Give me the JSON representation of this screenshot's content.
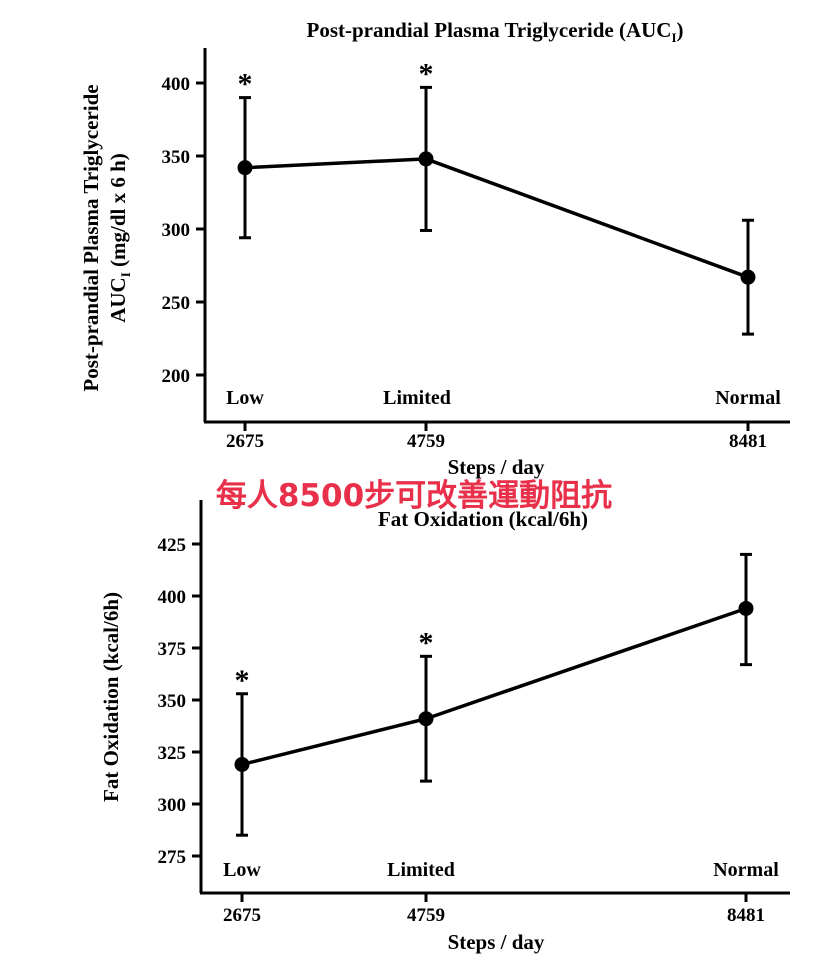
{
  "overlay_caption": "每人8500步可改善運動阻抗",
  "chart_data": [
    {
      "type": "line",
      "title": "Post-prandial Plasma Triglyceride (AUC",
      "title_subscript": "I",
      "title_close": ")",
      "ylabel_line1": "Post-prandial Plasma Triglyceride",
      "ylabel_line2_prefix": "AUC",
      "ylabel_line2_subscript": "I",
      "ylabel_line2_suffix": " (mg/dl x 6 h)",
      "xlabel": "Steps / day",
      "x": [
        2675,
        4759,
        8481
      ],
      "x_tick_labels": [
        "2675",
        "4759",
        "8481"
      ],
      "category_labels": [
        "Low",
        "Limited",
        "Normal"
      ],
      "ylim": [
        190,
        425
      ],
      "yticks": [
        200,
        250,
        300,
        350,
        400
      ],
      "series": [
        {
          "values": [
            342,
            348,
            267
          ],
          "error_low": [
            294,
            299,
            228
          ],
          "error_high": [
            390,
            397,
            306
          ],
          "significance": [
            "*",
            "*",
            ""
          ]
        }
      ]
    },
    {
      "type": "line",
      "title": "Fat Oxidation (kcal/6h)",
      "ylabel": "Fat Oxidation (kcal/6h)",
      "xlabel": "Steps / day",
      "x": [
        2675,
        4759,
        8481
      ],
      "x_tick_labels": [
        "2675",
        "4759",
        "8481"
      ],
      "category_labels": [
        "Low",
        "Limited",
        "Normal"
      ],
      "ylim": [
        260,
        435
      ],
      "yticks": [
        275,
        300,
        325,
        350,
        375,
        400,
        425
      ],
      "series": [
        {
          "values": [
            319,
            341,
            394
          ],
          "error_low": [
            285,
            311,
            367
          ],
          "error_high": [
            353,
            371,
            420
          ],
          "significance": [
            "*",
            "*",
            ""
          ]
        }
      ]
    }
  ]
}
